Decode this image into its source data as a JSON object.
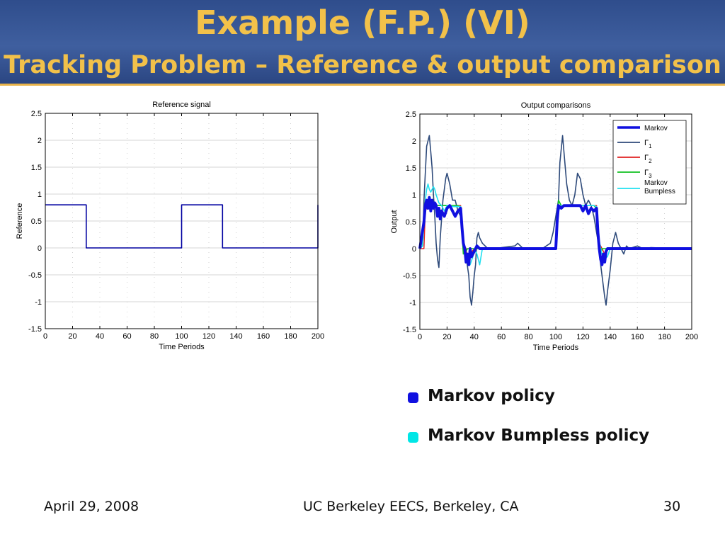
{
  "slide": {
    "title": "Example (F.P.) (VI)",
    "subtitle": "Tracking Problem – Reference & output comparison",
    "footer_left": "April 29, 2008",
    "footer_center": "UC Berkeley EECS, Berkeley, CA",
    "footer_right": "30",
    "bullets": [
      {
        "label": "Markov policy",
        "color": "#1010e0"
      },
      {
        "label": "Markov Bumpless policy",
        "color": "#00e6e6"
      }
    ]
  },
  "chart_data": [
    {
      "type": "line",
      "title": "Reference signal",
      "xlabel": "Time Periods",
      "ylabel": "Reference",
      "xlim": [
        0,
        200
      ],
      "ylim": [
        -1.5,
        2.5
      ],
      "xticks": [
        0,
        20,
        40,
        60,
        80,
        100,
        120,
        140,
        160,
        180,
        200
      ],
      "yticks": [
        -1.5,
        -1,
        -0.5,
        0,
        0.5,
        1,
        1.5,
        2,
        2.5
      ],
      "grid": true,
      "series": [
        {
          "color": "#0000a0",
          "points": [
            [
              0,
              0.8
            ],
            [
              30,
              0.8
            ],
            [
              30,
              0
            ],
            [
              100,
              0
            ],
            [
              100,
              0.8
            ],
            [
              130,
              0.8
            ],
            [
              130,
              0
            ],
            [
              200,
              0
            ],
            [
              200,
              0.8
            ]
          ]
        }
      ]
    },
    {
      "type": "line",
      "title": "Output comparisons",
      "xlabel": "Time Periods",
      "ylabel": "Output",
      "xlim": [
        0,
        200
      ],
      "ylim": [
        -1.5,
        2.5
      ],
      "xticks": [
        0,
        20,
        40,
        60,
        80,
        100,
        120,
        140,
        160,
        180,
        200
      ],
      "yticks": [
        -1.5,
        -1,
        -0.5,
        0,
        0.5,
        1,
        1.5,
        2,
        2.5
      ],
      "grid": true,
      "legend_position": "top-right",
      "series": [
        {
          "name": "Γ1",
          "color": "#2e4a7a",
          "width": 1.6,
          "points": [
            [
              0,
              0
            ],
            [
              2,
              0.05
            ],
            [
              3,
              0.9
            ],
            [
              5,
              1.9
            ],
            [
              7,
              2.1
            ],
            [
              8,
              1.8
            ],
            [
              9,
              1.5
            ],
            [
              10,
              1.0
            ],
            [
              11,
              0.6
            ],
            [
              12,
              0.1
            ],
            [
              13,
              -0.2
            ],
            [
              14,
              -0.35
            ],
            [
              15,
              0.2
            ],
            [
              17,
              0.9
            ],
            [
              19,
              1.3
            ],
            [
              20,
              1.4
            ],
            [
              22,
              1.2
            ],
            [
              24,
              0.9
            ],
            [
              26,
              0.9
            ],
            [
              28,
              0.7
            ],
            [
              30,
              0.6
            ],
            [
              31,
              0.3
            ],
            [
              32,
              0
            ],
            [
              34,
              -0.15
            ],
            [
              36,
              -0.5
            ],
            [
              37,
              -0.9
            ],
            [
              38,
              -1.05
            ],
            [
              39,
              -0.8
            ],
            [
              40,
              -0.5
            ],
            [
              41,
              -0.3
            ],
            [
              42,
              0.2
            ],
            [
              43,
              0.3
            ],
            [
              44,
              0.2
            ],
            [
              46,
              0.1
            ],
            [
              48,
              0.05
            ],
            [
              50,
              0
            ],
            [
              55,
              0
            ],
            [
              60,
              0.02
            ],
            [
              70,
              0.05
            ],
            [
              72,
              0.1
            ],
            [
              74,
              0.05
            ],
            [
              76,
              0
            ],
            [
              90,
              0
            ],
            [
              96,
              0.1
            ],
            [
              98,
              0.3
            ],
            [
              100,
              0.6
            ],
            [
              102,
              0.9
            ],
            [
              103,
              1.6
            ],
            [
              105,
              2.1
            ],
            [
              106,
              1.8
            ],
            [
              108,
              1.2
            ],
            [
              110,
              0.9
            ],
            [
              112,
              0.8
            ],
            [
              114,
              1.0
            ],
            [
              116,
              1.4
            ],
            [
              118,
              1.3
            ],
            [
              120,
              1.0
            ],
            [
              122,
              0.8
            ],
            [
              124,
              0.9
            ],
            [
              126,
              0.8
            ],
            [
              128,
              0.6
            ],
            [
              130,
              0.3
            ],
            [
              132,
              0
            ],
            [
              133,
              -0.3
            ],
            [
              135,
              -0.7
            ],
            [
              136,
              -0.9
            ],
            [
              137,
              -1.05
            ],
            [
              138,
              -0.8
            ],
            [
              140,
              -0.4
            ],
            [
              142,
              0.1
            ],
            [
              144,
              0.3
            ],
            [
              146,
              0.1
            ],
            [
              148,
              0
            ],
            [
              150,
              -0.1
            ],
            [
              152,
              0.05
            ],
            [
              154,
              0
            ],
            [
              160,
              0.05
            ],
            [
              164,
              0
            ],
            [
              170,
              0.02
            ],
            [
              190,
              0
            ],
            [
              195,
              0
            ],
            [
              200,
              0
            ]
          ]
        },
        {
          "name": "Γ2",
          "color": "#e02020",
          "width": 1.4,
          "points": [
            [
              0,
              0
            ],
            [
              3,
              0
            ],
            [
              4,
              0.7
            ],
            [
              6,
              0.8
            ],
            [
              30,
              0.8
            ],
            [
              32,
              0.1
            ],
            [
              34,
              0
            ],
            [
              35,
              -0.2
            ],
            [
              37,
              -0.1
            ],
            [
              40,
              0
            ],
            [
              100,
              0
            ],
            [
              102,
              0.7
            ],
            [
              104,
              0.8
            ],
            [
              130,
              0.8
            ],
            [
              132,
              0.1
            ],
            [
              134,
              0
            ],
            [
              136,
              -0.1
            ],
            [
              138,
              0
            ],
            [
              200,
              0
            ]
          ]
        },
        {
          "name": "Γ3",
          "color": "#10c020",
          "width": 1.6,
          "points": [
            [
              0,
              0
            ],
            [
              2,
              0.05
            ],
            [
              3,
              0.5
            ],
            [
              4,
              0.9
            ],
            [
              6,
              0.85
            ],
            [
              8,
              0.8
            ],
            [
              10,
              0.85
            ],
            [
              12,
              0.8
            ],
            [
              20,
              0.8
            ],
            [
              28,
              0.8
            ],
            [
              30,
              0.75
            ],
            [
              31,
              0.3
            ],
            [
              32,
              -0.1
            ],
            [
              33,
              0
            ],
            [
              34,
              -0.05
            ],
            [
              35,
              0
            ],
            [
              40,
              0
            ],
            [
              100,
              0
            ],
            [
              101,
              0.5
            ],
            [
              102,
              0.9
            ],
            [
              104,
              0.8
            ],
            [
              120,
              0.8
            ],
            [
              128,
              0.8
            ],
            [
              130,
              0.75
            ],
            [
              131,
              0.3
            ],
            [
              132,
              0
            ],
            [
              133,
              -0.1
            ],
            [
              134,
              0
            ],
            [
              200,
              0
            ]
          ]
        },
        {
          "name": "Markov Bumpless",
          "color": "#20e0f0",
          "width": 1.6,
          "points": [
            [
              0,
              0
            ],
            [
              2,
              0.05
            ],
            [
              3,
              0.5
            ],
            [
              4,
              0.9
            ],
            [
              5,
              1.1
            ],
            [
              6,
              1.2
            ],
            [
              7,
              1.1
            ],
            [
              8,
              1.05
            ],
            [
              9,
              1.1
            ],
            [
              10,
              1.15
            ],
            [
              11,
              1.1
            ],
            [
              12,
              1.0
            ],
            [
              14,
              0.85
            ],
            [
              16,
              0.8
            ],
            [
              18,
              0.7
            ],
            [
              20,
              0.8
            ],
            [
              25,
              0.78
            ],
            [
              30,
              0.78
            ],
            [
              31,
              0.3
            ],
            [
              33,
              0
            ],
            [
              35,
              -0.2
            ],
            [
              37,
              -0.3
            ],
            [
              39,
              -0.15
            ],
            [
              40,
              0
            ],
            [
              42,
              -0.1
            ],
            [
              44,
              -0.3
            ],
            [
              46,
              0
            ],
            [
              50,
              0
            ],
            [
              100,
              0
            ],
            [
              101,
              0.4
            ],
            [
              102,
              0.7
            ],
            [
              104,
              0.8
            ],
            [
              128,
              0.8
            ],
            [
              130,
              0.78
            ],
            [
              131,
              0.3
            ],
            [
              133,
              0
            ],
            [
              135,
              -0.2
            ],
            [
              138,
              -0.15
            ],
            [
              140,
              0
            ],
            [
              200,
              0
            ]
          ]
        },
        {
          "name": "Markov",
          "color": "#1010e0",
          "width": 4,
          "points": [
            [
              0,
              0
            ],
            [
              3,
              0.5
            ],
            [
              4,
              0.8
            ],
            [
              5,
              0.9
            ],
            [
              6,
              0.75
            ],
            [
              7,
              0.95
            ],
            [
              8,
              0.7
            ],
            [
              9,
              0.9
            ],
            [
              10,
              0.75
            ],
            [
              11,
              0.85
            ],
            [
              12,
              0.8
            ],
            [
              13,
              0.6
            ],
            [
              14,
              0.75
            ],
            [
              15,
              0.55
            ],
            [
              16,
              0.7
            ],
            [
              18,
              0.6
            ],
            [
              20,
              0.75
            ],
            [
              22,
              0.8
            ],
            [
              24,
              0.7
            ],
            [
              26,
              0.6
            ],
            [
              28,
              0.7
            ],
            [
              30,
              0.75
            ],
            [
              31,
              0.4
            ],
            [
              32,
              0.1
            ],
            [
              33,
              0
            ],
            [
              34,
              -0.25
            ],
            [
              35,
              -0.1
            ],
            [
              36,
              -0.3
            ],
            [
              37,
              0
            ],
            [
              38,
              -0.15
            ],
            [
              40,
              -0.05
            ],
            [
              42,
              0.05
            ],
            [
              44,
              0
            ],
            [
              46,
              0
            ],
            [
              60,
              0
            ],
            [
              80,
              0
            ],
            [
              100,
              0
            ],
            [
              101,
              0.5
            ],
            [
              102,
              0.8
            ],
            [
              104,
              0.75
            ],
            [
              106,
              0.8
            ],
            [
              110,
              0.8
            ],
            [
              118,
              0.8
            ],
            [
              120,
              0.7
            ],
            [
              122,
              0.8
            ],
            [
              124,
              0.65
            ],
            [
              126,
              0.75
            ],
            [
              128,
              0.7
            ],
            [
              130,
              0.75
            ],
            [
              131,
              0.3
            ],
            [
              132,
              0
            ],
            [
              133,
              -0.2
            ],
            [
              134,
              -0.3
            ],
            [
              135,
              -0.1
            ],
            [
              136,
              -0.25
            ],
            [
              137,
              -0.05
            ],
            [
              138,
              0
            ],
            [
              140,
              0
            ],
            [
              150,
              0
            ],
            [
              200,
              0
            ]
          ]
        }
      ],
      "legend": [
        "Markov",
        "Γ1",
        "Γ2",
        "Γ3",
        "Markov Bumpless"
      ]
    }
  ]
}
